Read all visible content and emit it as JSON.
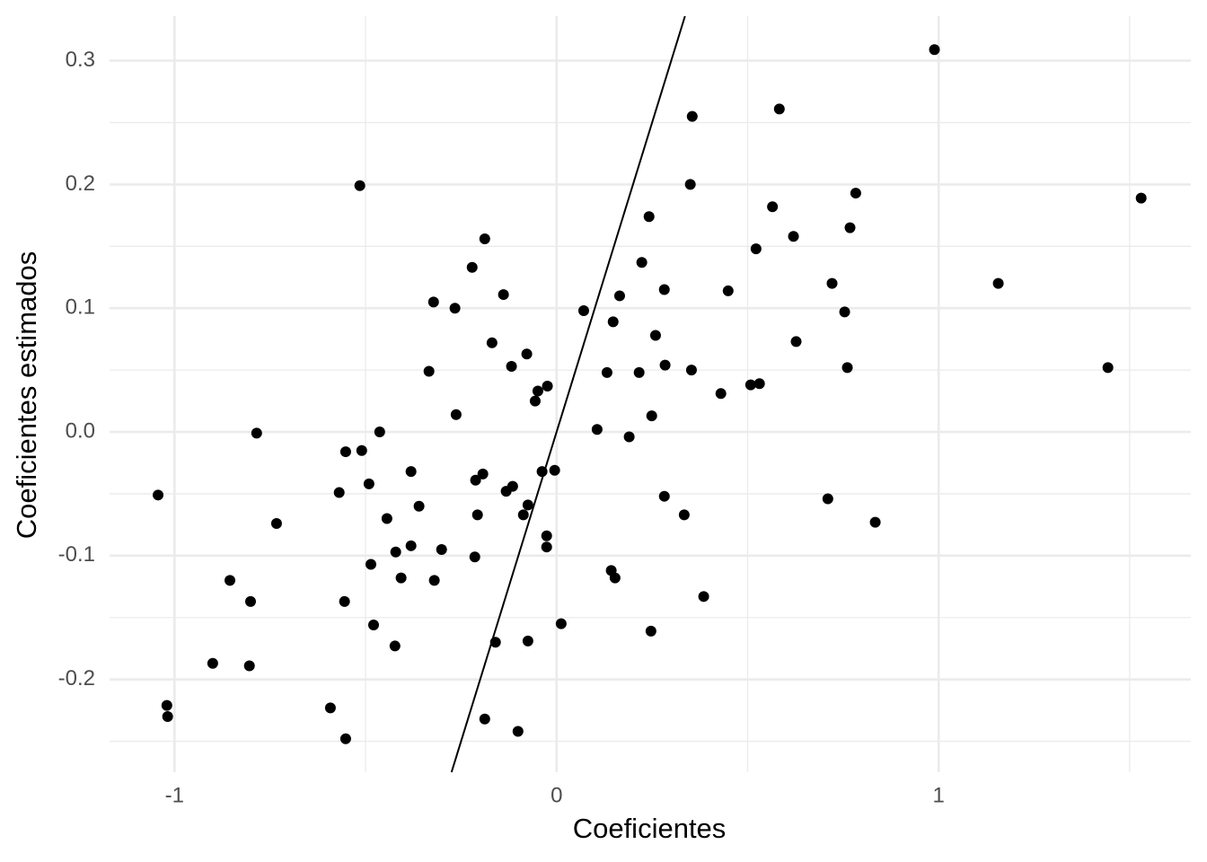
{
  "chart_data": {
    "type": "scatter",
    "xlabel": "Coeficientes",
    "ylabel": "Coeficientes estimados",
    "xlim": [
      -1.17,
      1.66
    ],
    "ylim": [
      -0.275,
      0.336
    ],
    "xticks": [
      -1,
      0,
      1
    ],
    "yticks": [
      -0.2,
      -0.1,
      {
        "value": 0,
        "label": "0.0"
      },
      0.1,
      0.2,
      0.3
    ],
    "xminorticks": [
      -0.5,
      0.5,
      1.5
    ],
    "yminorticks": [
      -0.25,
      -0.15,
      -0.05,
      0.05,
      0.15,
      0.25
    ],
    "grid": true,
    "color": "#000000",
    "reference_line": {
      "slope": 1,
      "intercept": 0
    },
    "x": [
      0.989,
      1.53,
      1.156,
      1.443,
      0.583,
      0.355,
      0.35,
      -0.515,
      0.783,
      0.565,
      0.768,
      0.242,
      -0.188,
      0.62,
      0.522,
      0.223,
      -0.221,
      0.721,
      0.282,
      0.449,
      -0.139,
      0.165,
      -0.322,
      -0.266,
      0.071,
      0.754,
      0.148,
      0.259,
      0.627,
      -0.169,
      -0.078,
      -0.118,
      0.284,
      0.761,
      0.353,
      -0.334,
      0.132,
      0.216,
      0.508,
      0.531,
      -0.024,
      -0.049,
      -0.056,
      0.43,
      -0.263,
      0.106,
      -0.785,
      -0.463,
      0.19,
      0.249,
      -0.552,
      -0.51,
      -1.043,
      -0.381,
      -0.193,
      -0.038,
      -0.005,
      -0.491,
      -0.212,
      -0.115,
      -0.132,
      0.282,
      -0.569,
      0.71,
      -0.36,
      -0.075,
      -0.207,
      -0.087,
      0.334,
      -0.444,
      0.834,
      -0.733,
      -0.026,
      -0.026,
      -0.381,
      -0.421,
      -0.301,
      -0.214,
      -0.486,
      0.143,
      0.153,
      -0.407,
      -0.32,
      -0.855,
      -0.801,
      -0.555,
      0.385,
      -0.479,
      0.012,
      0.247,
      -0.423,
      -0.16,
      -0.075,
      -0.9,
      -0.804,
      -1.02,
      -1.018,
      -0.592,
      -0.188,
      -0.101,
      -0.552
    ],
    "values": [
      0.309,
      0.189,
      0.12,
      0.052,
      0.261,
      0.255,
      0.2,
      0.199,
      0.193,
      0.182,
      0.165,
      0.174,
      0.156,
      0.158,
      0.148,
      0.137,
      0.133,
      0.12,
      0.115,
      0.114,
      0.111,
      0.11,
      0.105,
      0.1,
      0.098,
      0.097,
      0.089,
      0.078,
      0.073,
      0.072,
      0.063,
      0.053,
      0.054,
      0.052,
      0.05,
      0.049,
      0.048,
      0.048,
      0.038,
      0.039,
      0.037,
      0.033,
      0.025,
      0.031,
      0.014,
      0.002,
      -0.001,
      0.0,
      -0.004,
      0.013,
      -0.016,
      -0.015,
      -0.051,
      -0.032,
      -0.034,
      -0.032,
      -0.031,
      -0.042,
      -0.039,
      -0.044,
      -0.048,
      -0.052,
      -0.049,
      -0.054,
      -0.06,
      -0.059,
      -0.067,
      -0.067,
      -0.067,
      -0.07,
      -0.073,
      -0.074,
      -0.084,
      -0.093,
      -0.092,
      -0.097,
      -0.095,
      -0.101,
      -0.107,
      -0.112,
      -0.118,
      -0.118,
      -0.12,
      -0.12,
      -0.137,
      -0.137,
      -0.133,
      -0.156,
      -0.155,
      -0.161,
      -0.173,
      -0.17,
      -0.169,
      -0.187,
      -0.189,
      -0.221,
      -0.23,
      -0.223,
      -0.232,
      -0.242,
      -0.248
    ]
  }
}
